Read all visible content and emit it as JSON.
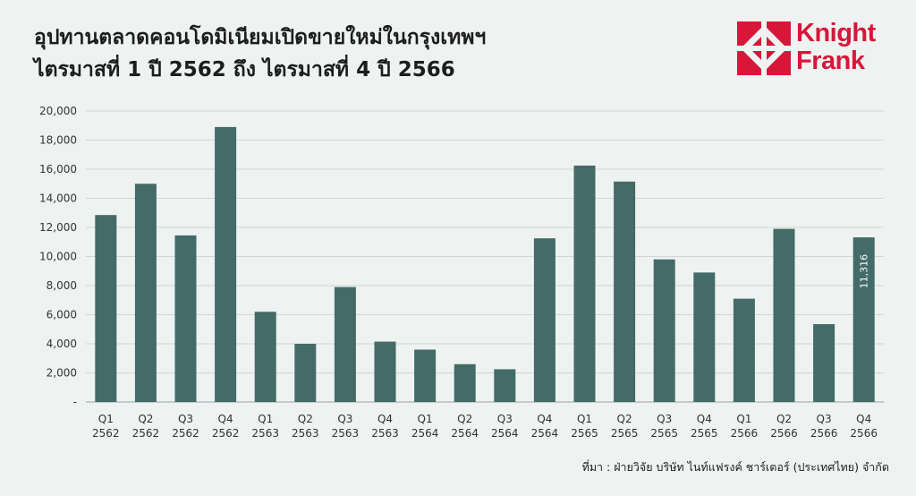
{
  "title_line1": "อุปทานตลาดคอนโดมิเนียมเปิดขายใหม่ในกรุงเทพฯ",
  "title_line2": "ไตรมาสที่ 1 ปี 2562 ถึง ไตรมาสที่ 4 ปี 2566",
  "logo": {
    "line1": "Knight",
    "line2": "Frank",
    "brand_color": "#d6173a"
  },
  "source": "ที่มา : ฝ่ายวิจัย บริษัท ไนท์แฟรงค์ ชาร์เตอร์ (ประเทศไทย) จำกัด",
  "chart_data": {
    "type": "bar",
    "categories": [
      [
        "Q1",
        "2562"
      ],
      [
        "Q2",
        "2562"
      ],
      [
        "Q3",
        "2562"
      ],
      [
        "Q4",
        "2562"
      ],
      [
        "Q1",
        "2563"
      ],
      [
        "Q2",
        "2563"
      ],
      [
        "Q3",
        "2563"
      ],
      [
        "Q4",
        "2563"
      ],
      [
        "Q1",
        "2564"
      ],
      [
        "Q2",
        "2564"
      ],
      [
        "Q3",
        "2564"
      ],
      [
        "Q4",
        "2564"
      ],
      [
        "Q1",
        "2565"
      ],
      [
        "Q2",
        "2565"
      ],
      [
        "Q3",
        "2565"
      ],
      [
        "Q4",
        "2565"
      ],
      [
        "Q1",
        "2566"
      ],
      [
        "Q2",
        "2566"
      ],
      [
        "Q3",
        "2566"
      ],
      [
        "Q4",
        "2566"
      ]
    ],
    "values": [
      12850,
      15000,
      11450,
      18900,
      6200,
      4000,
      7900,
      4150,
      3600,
      2600,
      2250,
      11250,
      16250,
      15150,
      9800,
      8900,
      7100,
      11900,
      5350,
      11316
    ],
    "data_labels": {
      "19": "11,316"
    },
    "ylim": [
      0,
      20000
    ],
    "yticks": [
      {
        "value": 0,
        "label": "-"
      },
      {
        "value": 2000,
        "label": "2,000"
      },
      {
        "value": 4000,
        "label": "4,000"
      },
      {
        "value": 6000,
        "label": "6,000"
      },
      {
        "value": 8000,
        "label": "8,000"
      },
      {
        "value": 10000,
        "label": "10,000"
      },
      {
        "value": 12000,
        "label": "12,000"
      },
      {
        "value": 14000,
        "label": "14,000"
      },
      {
        "value": 16000,
        "label": "16,000"
      },
      {
        "value": 18000,
        "label": "18,000"
      },
      {
        "value": 20000,
        "label": "20,000"
      }
    ],
    "grid": true,
    "bar_color": "#436b68",
    "grid_color": "#cfd6d5"
  }
}
